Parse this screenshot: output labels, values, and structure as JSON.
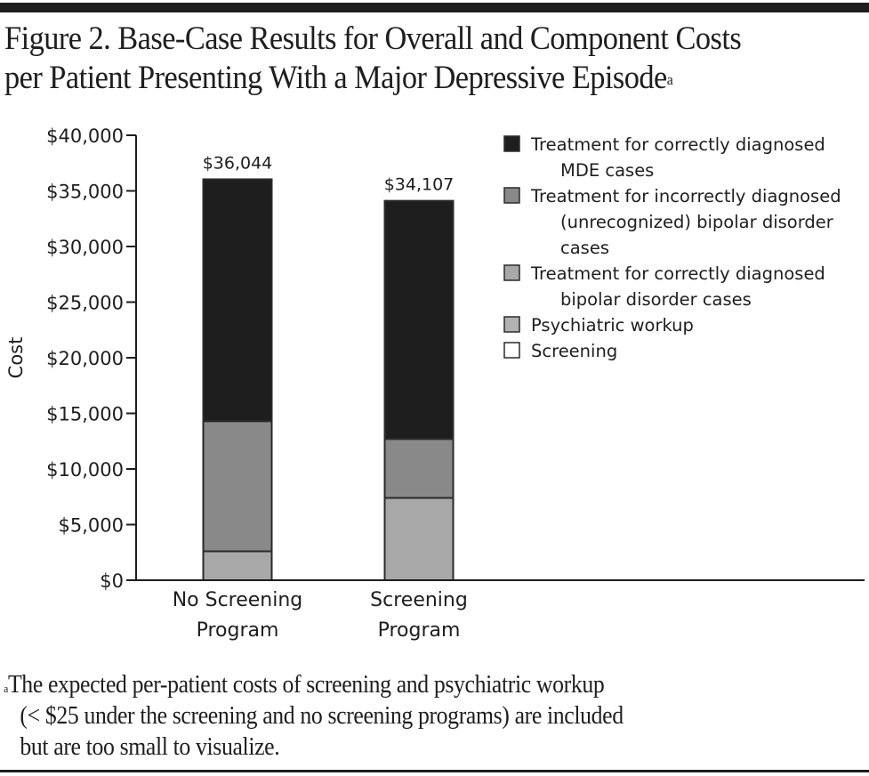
{
  "figure": {
    "title_line1": "Figure 2. Base-Case Results for Overall and Component Costs",
    "title_line2": "per Patient Presenting With a Major Depressive Episode",
    "title_marker": "a",
    "footnote_marker": "a",
    "footnote_line1": "The expected per-patient costs of screening and psychiatric workup",
    "footnote_line2": "(< $25 under the screening and no screening programs) are included",
    "footnote_line3": "but are too small to visualize."
  },
  "colors": {
    "mde": "#1e1e1e",
    "incorrect_bipolar": "#8a8989",
    "correct_bipolar": "#a8a8a8",
    "workup": "#b2b2b2",
    "screening": "#ffffff",
    "stroke": "#2a2a2a"
  },
  "chart_data": {
    "type": "bar",
    "stacked": true,
    "title": "Figure 2. Base-Case Results for Overall and Component Costs per Patient Presenting With a Major Depressive Episode",
    "xlabel": "",
    "ylabel": "Cost",
    "ylim": [
      0,
      40000
    ],
    "yticks": [
      0,
      5000,
      10000,
      15000,
      20000,
      25000,
      30000,
      35000,
      40000
    ],
    "ytick_labels": [
      "$0",
      "$5,000",
      "$10,000",
      "$15,000",
      "$20,000",
      "$25,000",
      "$30,000",
      "$35,000",
      "$40,000"
    ],
    "grid": false,
    "legend_position": "top-right",
    "categories": [
      {
        "line1": "No Screening",
        "line2": "Program"
      },
      {
        "line1": "Screening",
        "line2": "Program"
      }
    ],
    "totals": [
      36044,
      34107
    ],
    "total_labels": [
      "$36,044",
      "$34,107"
    ],
    "series": [
      {
        "key": "screening",
        "name": "Screening",
        "legend_lines": [
          "Screening"
        ],
        "values": [
          0,
          0
        ],
        "color_key": "screening"
      },
      {
        "key": "workup",
        "name": "Psychiatric workup",
        "legend_lines": [
          "Psychiatric workup"
        ],
        "values": [
          0,
          0
        ],
        "color_key": "workup"
      },
      {
        "key": "correct_bipolar",
        "name": "Treatment for correctly diagnosed bipolar disorder cases",
        "legend_lines": [
          "Treatment for correctly diagnosed",
          "bipolar disorder cases"
        ],
        "values": [
          2600,
          7400
        ],
        "color_key": "correct_bipolar"
      },
      {
        "key": "incorrect_bipolar",
        "name": "Treatment for incorrectly diagnosed (unrecognized) bipolar disorder cases",
        "legend_lines": [
          "Treatment for incorrectly diagnosed",
          "(unrecognized) bipolar disorder",
          "cases"
        ],
        "values": [
          11700,
          5300
        ],
        "color_key": "incorrect_bipolar"
      },
      {
        "key": "mde",
        "name": "Treatment for correctly diagnosed MDE cases",
        "legend_lines": [
          "Treatment for correctly diagnosed",
          "MDE cases"
        ],
        "values": [
          21744,
          21407
        ],
        "color_key": "mde"
      }
    ],
    "legend_order": [
      "mde",
      "incorrect_bipolar",
      "correct_bipolar",
      "workup",
      "screening"
    ]
  }
}
